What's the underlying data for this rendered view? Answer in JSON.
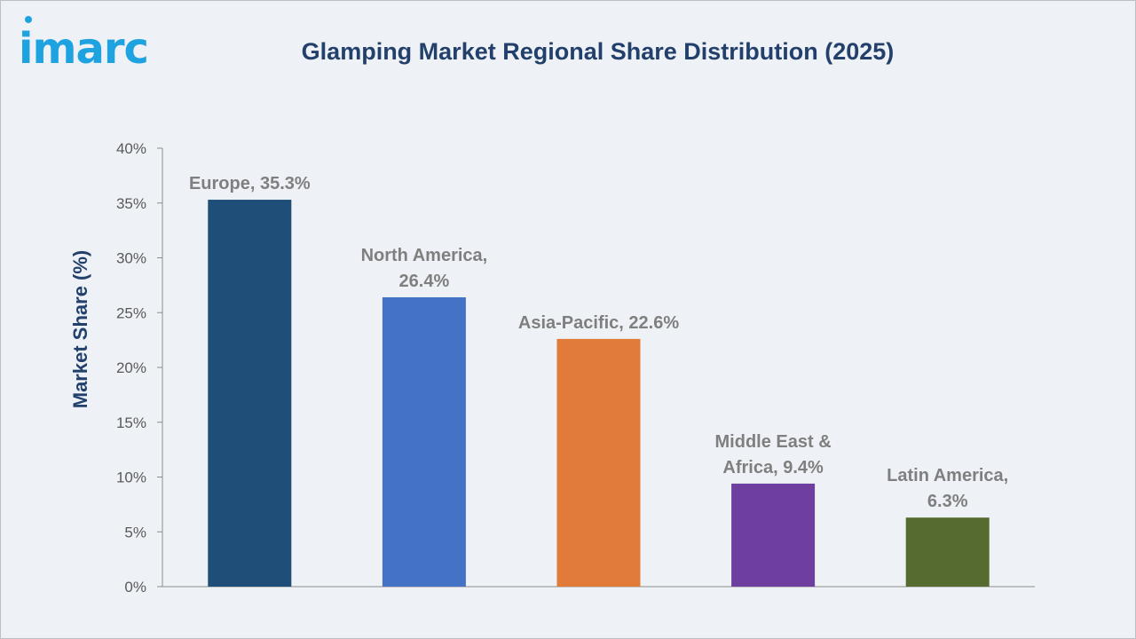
{
  "brand": {
    "logo_text": "imarc"
  },
  "chart_data": {
    "type": "bar",
    "title": "Glamping Market Regional Share Distribution (2025)",
    "xlabel": "",
    "ylabel": "Market Share (%)",
    "ylim": [
      0,
      40
    ],
    "yticks": [
      0,
      5,
      10,
      15,
      20,
      25,
      30,
      35,
      40
    ],
    "ytick_labels": [
      "0%",
      "5%",
      "10%",
      "15%",
      "20%",
      "25%",
      "30%",
      "35%",
      "40%"
    ],
    "grid": false,
    "legend": "none",
    "categories": [
      "Europe",
      "North America",
      "Asia-Pacific",
      "Middle East & Africa",
      "Latin America"
    ],
    "values": [
      35.3,
      26.4,
      22.6,
      9.4,
      6.3
    ],
    "data_labels": [
      [
        "Europe, 35.3%"
      ],
      [
        "North America,",
        "26.4%"
      ],
      [
        "Asia-Pacific, 22.6%"
      ],
      [
        "Middle East &",
        "Africa, 9.4%"
      ],
      [
        "Latin America,",
        "6.3%"
      ]
    ],
    "colors": [
      "#1f4e79",
      "#4472c4",
      "#e07b39",
      "#6f3fa0",
      "#556b2f"
    ]
  },
  "colors": {
    "background": "#eef2f6",
    "title": "#22406b",
    "axis_label": "#22406b",
    "tick_text": "#595959",
    "data_label": "#7f7f7f",
    "axis_line": "#8c8c8c",
    "logo": "#1fa3e0"
  }
}
